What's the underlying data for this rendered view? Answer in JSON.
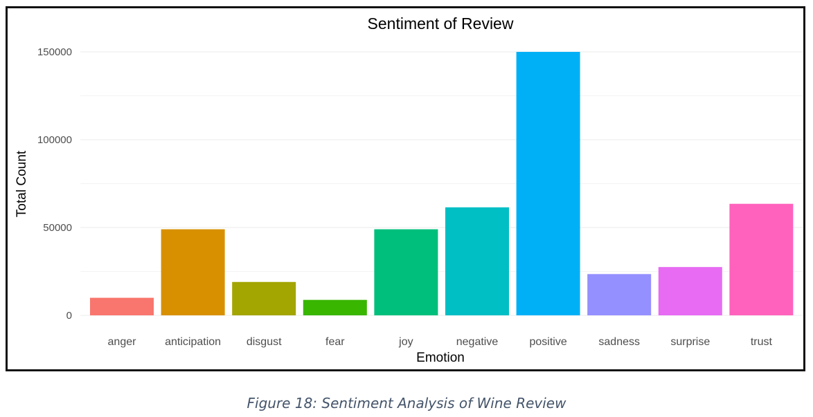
{
  "chart_data": {
    "type": "bar",
    "title": "Sentiment of Review",
    "xlabel": "Emotion",
    "ylabel": "Total Count",
    "categories": [
      "anger",
      "anticipation",
      "disgust",
      "fear",
      "joy",
      "negative",
      "positive",
      "sadness",
      "surprise",
      "trust"
    ],
    "values": [
      10000,
      49000,
      19000,
      8800,
      49000,
      61500,
      150000,
      23500,
      27500,
      63500
    ],
    "colors": [
      "#F8766D",
      "#D89000",
      "#A3A500",
      "#39B600",
      "#00BF7D",
      "#00BFC4",
      "#00B0F6",
      "#9590FF",
      "#E76BF3",
      "#FF62BC"
    ],
    "yticks": [
      0,
      50000,
      100000,
      150000
    ],
    "ylim": [
      0,
      150000
    ],
    "grid": true,
    "legend": "none"
  },
  "caption": "Figure 18: Sentiment Analysis of Wine Review"
}
